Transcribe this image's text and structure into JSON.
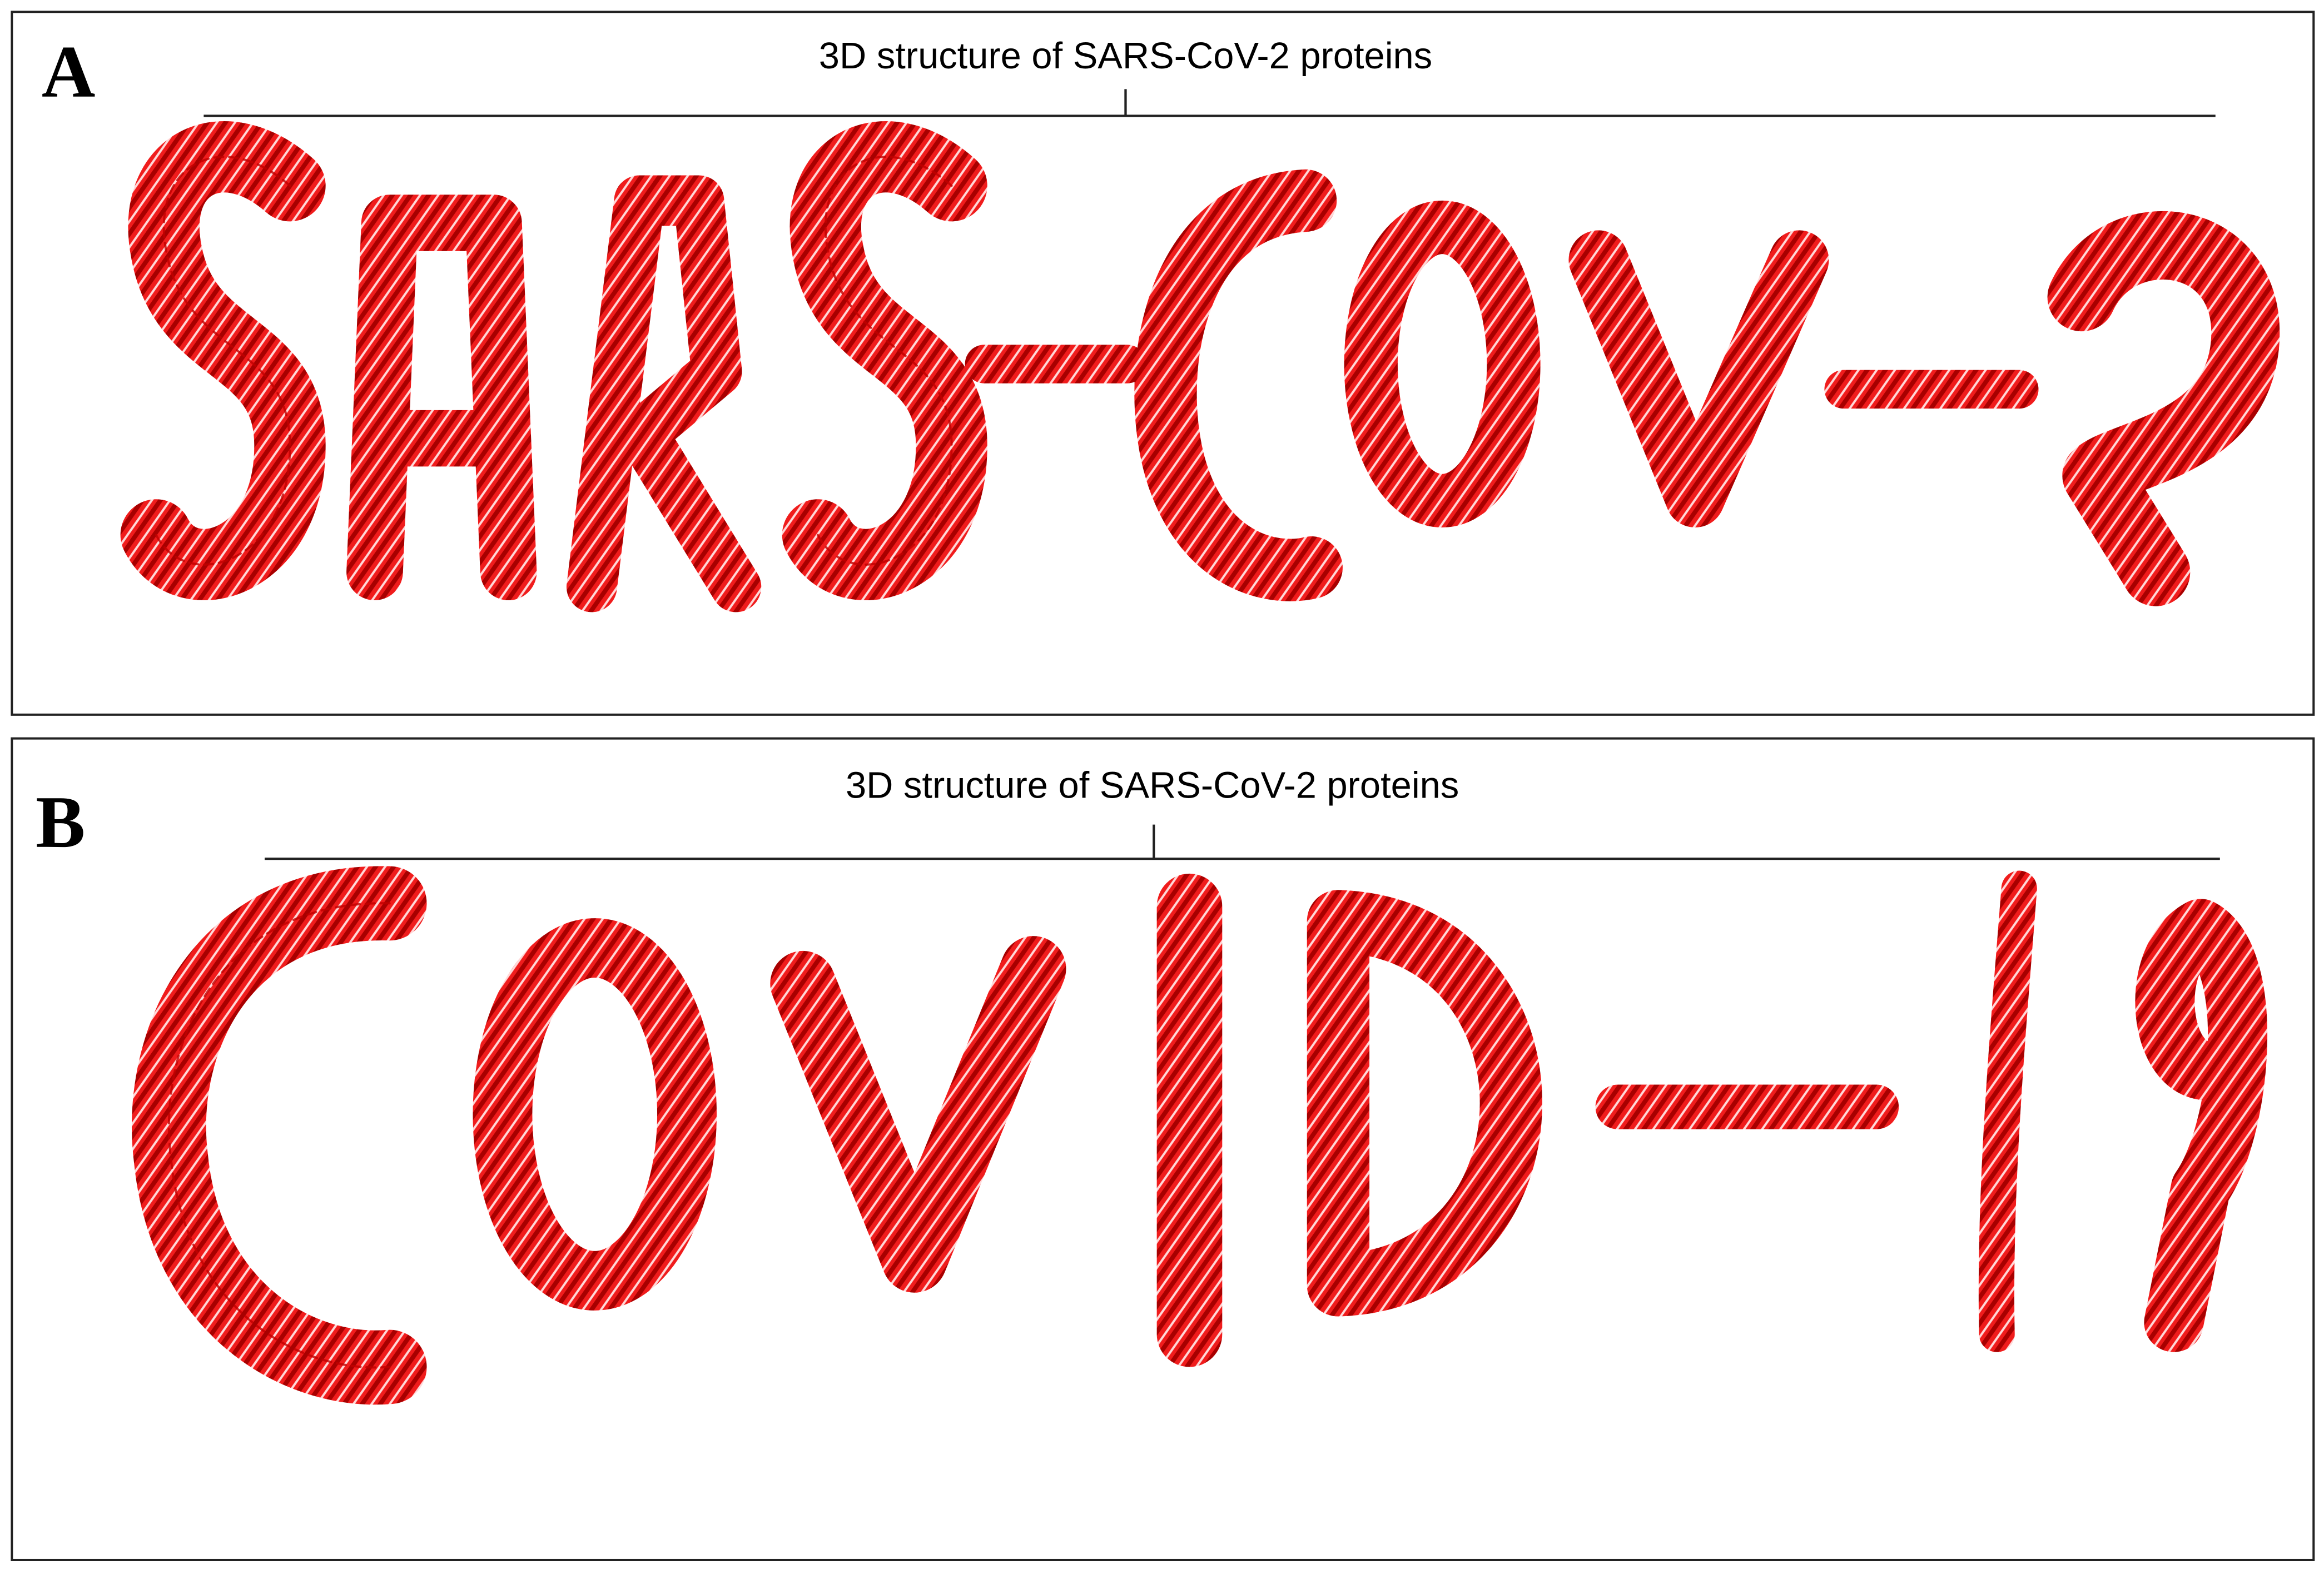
{
  "panels": [
    {
      "label": "A",
      "title": "3D structure of SARS-CoV-2 proteins"
    },
    {
      "label": "B",
      "title": "3D structure of SARS-CoV-2 proteins"
    }
  ]
}
